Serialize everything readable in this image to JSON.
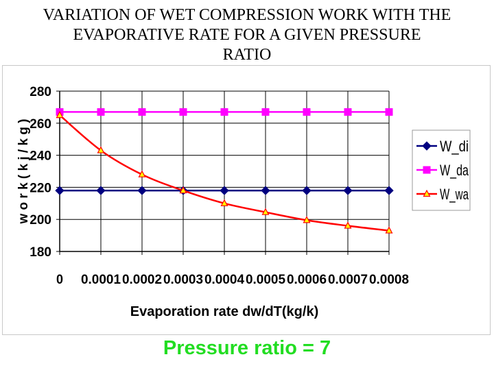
{
  "slide": {
    "title_line1": "VARIATION OF WET COMPRESSION WORK WITH THE",
    "title_line2": "EVAPORATIVE RATE FOR A GIVEN PRESSURE",
    "title_line3": "RATIO",
    "footer": "Pressure ratio = 7"
  },
  "chart_data": {
    "type": "line",
    "title": "",
    "xlabel": "Evaporation rate dw/dT(kg/k)",
    "ylabel": "w o r k   ( k j / k g )",
    "categories": [
      "0",
      "0.0001",
      "0.0002",
      "0.0003",
      "0.0004",
      "0.0005",
      "0.0006",
      "0.0007",
      "0.0008"
    ],
    "ylim": [
      180,
      280
    ],
    "yticks": [
      180,
      200,
      220,
      240,
      260,
      280
    ],
    "grid": true,
    "legend_position": "right",
    "series": [
      {
        "name": "W_di",
        "color": "#000080",
        "marker": "diamond",
        "values": [
          218,
          218,
          218,
          218,
          218,
          218,
          218,
          218,
          218
        ]
      },
      {
        "name": "W_da",
        "color": "#ff00ff",
        "marker": "square",
        "values": [
          267,
          267,
          267,
          267,
          267,
          267,
          267,
          267,
          267
        ]
      },
      {
        "name": "W_wa",
        "color": "#ff0000",
        "marker": "triangle",
        "values": [
          265,
          243,
          228,
          218,
          210,
          204.5,
          199.5,
          196,
          193
        ]
      }
    ]
  }
}
